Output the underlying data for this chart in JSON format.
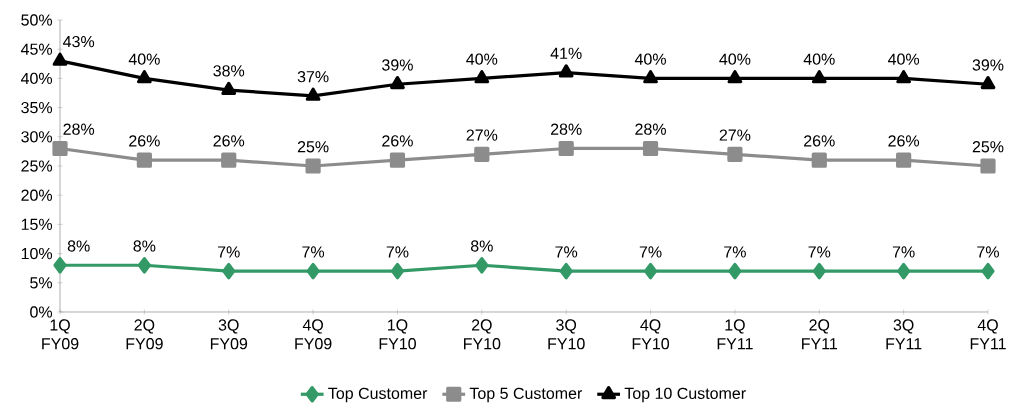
{
  "chart_data": {
    "type": "line",
    "categories": [
      "1Q FY09",
      "2Q FY09",
      "3Q FY09",
      "4Q FY09",
      "1Q FY10",
      "2Q FY10",
      "3Q FY10",
      "4Q FY10",
      "1Q FY11",
      "2Q FY11",
      "3Q FY11",
      "4Q FY11"
    ],
    "series": [
      {
        "name": "Top Customer",
        "color": "#339966",
        "marker": "diamond",
        "values": [
          8,
          8,
          7,
          7,
          7,
          8,
          7,
          7,
          7,
          7,
          7,
          7
        ],
        "value_labels": [
          "8%",
          "8%",
          "7%",
          "7%",
          "7%",
          "8%",
          "7%",
          "7%",
          "7%",
          "7%",
          "7%",
          "7%"
        ]
      },
      {
        "name": "Top 5 Customer",
        "color": "#8c8c8c",
        "marker": "square",
        "values": [
          28,
          26,
          26,
          25,
          26,
          27,
          28,
          28,
          27,
          26,
          26,
          25
        ],
        "value_labels": [
          "28%",
          "26%",
          "26%",
          "25%",
          "26%",
          "27%",
          "28%",
          "28%",
          "27%",
          "26%",
          "26%",
          "25%"
        ]
      },
      {
        "name": "Top 10 Customer",
        "color": "#000000",
        "marker": "triangle",
        "values": [
          43,
          40,
          38,
          37,
          39,
          40,
          41,
          40,
          40,
          40,
          40,
          39
        ],
        "value_labels": [
          "43%",
          "40%",
          "38%",
          "37%",
          "39%",
          "40%",
          "41%",
          "40%",
          "40%",
          "40%",
          "40%",
          "39%"
        ]
      }
    ],
    "ylim": [
      0,
      50
    ],
    "yticks": [
      {
        "value": 0,
        "label": "0%"
      },
      {
        "value": 5,
        "label": "5%"
      },
      {
        "value": 10,
        "label": "10%"
      },
      {
        "value": 15,
        "label": "15%"
      },
      {
        "value": 20,
        "label": "20%"
      },
      {
        "value": 25,
        "label": "25%"
      },
      {
        "value": 30,
        "label": "30%"
      },
      {
        "value": 35,
        "label": "35%"
      },
      {
        "value": 40,
        "label": "40%"
      },
      {
        "value": 45,
        "label": "45%"
      },
      {
        "value": 50,
        "label": "50%"
      }
    ],
    "grid": false,
    "legend": "bottom"
  }
}
